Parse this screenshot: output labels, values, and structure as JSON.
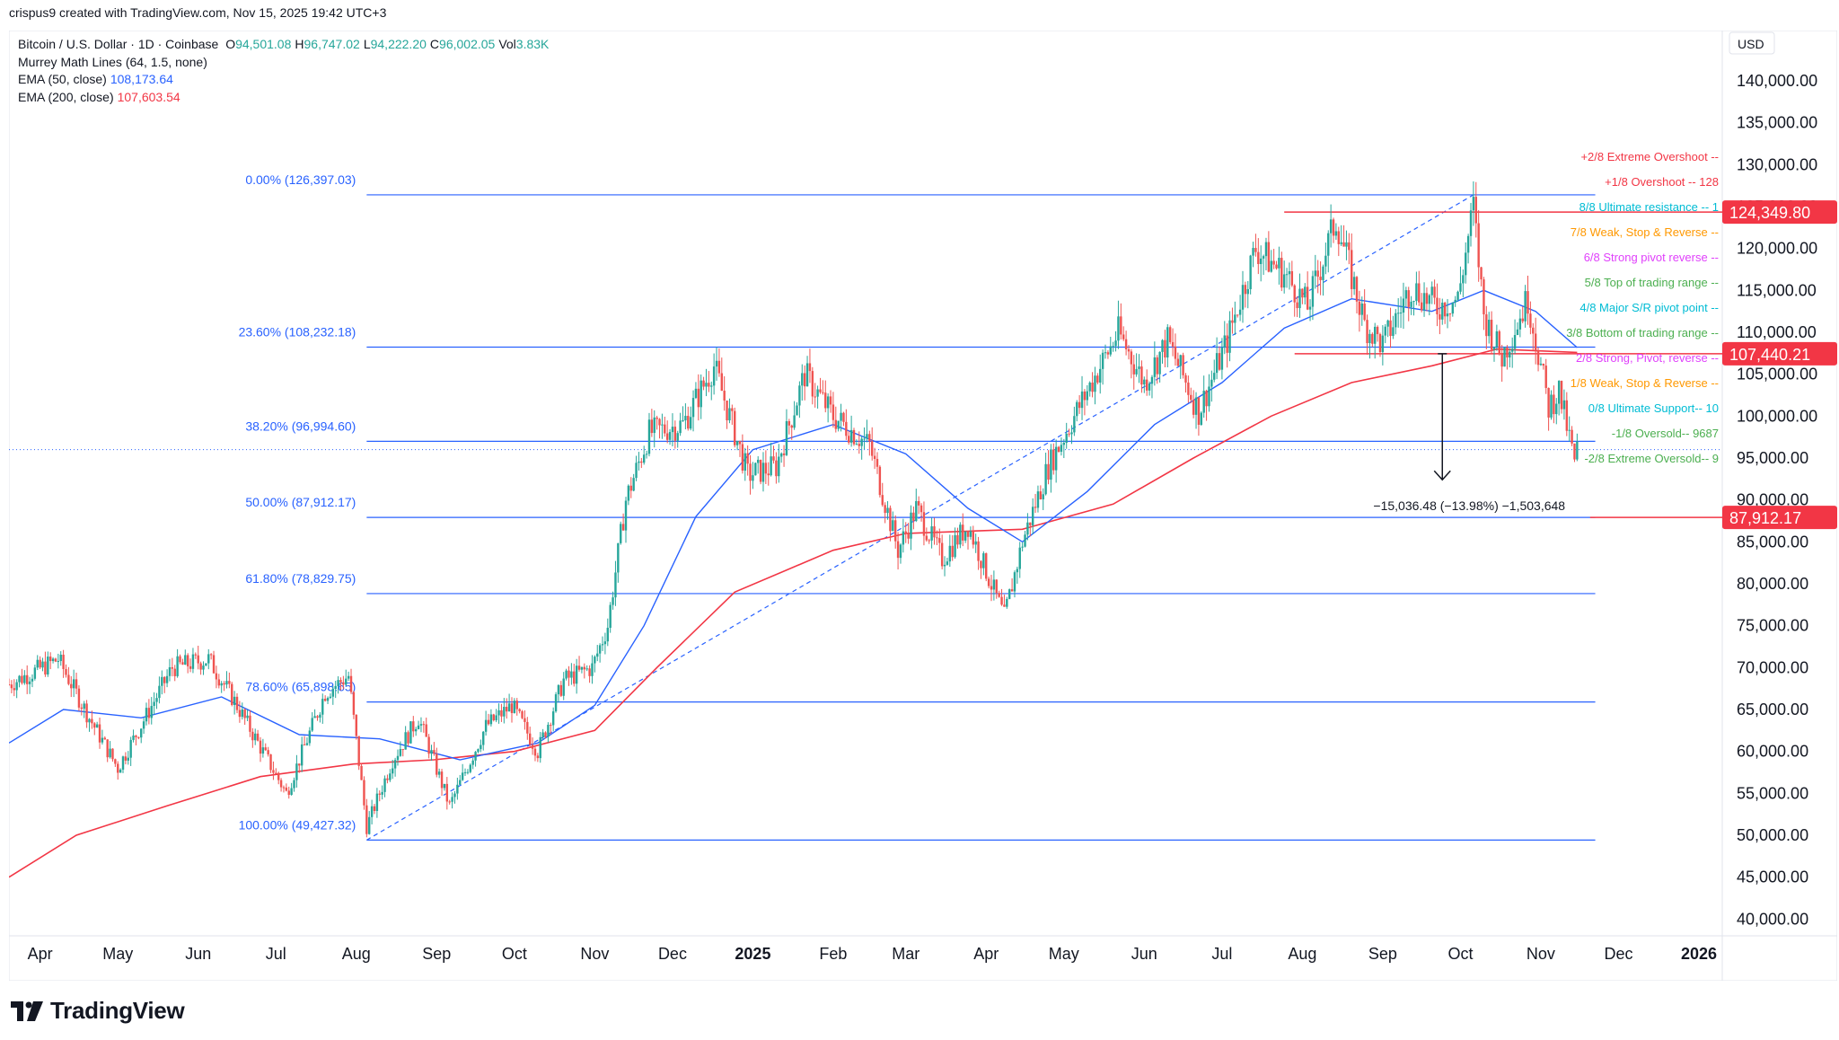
{
  "header": {
    "created_by": "crispus9 created with TradingView.com, Nov 15, 2025 19:42 UTC+3"
  },
  "legend": {
    "symbol": "Bitcoin / U.S. Dollar · 1D · Coinbase",
    "ohlc": [
      {
        "key": "O",
        "value": "94,501.08"
      },
      {
        "key": "H",
        "value": "96,747.02"
      },
      {
        "key": "L",
        "value": "94,222.20"
      },
      {
        "key": "C",
        "value": "96,002.05"
      },
      {
        "key": "Vol",
        "value": "3.83K"
      }
    ],
    "indicators": [
      {
        "label": "Murrey Math Lines (64, 1.5, none)",
        "value": "",
        "color": "#131722"
      },
      {
        "label": "EMA (50, close)",
        "value": "108,173.64",
        "color": "#2962ff"
      },
      {
        "label": "EMA (200, close)",
        "value": "107,603.54",
        "color": "#f23645"
      }
    ]
  },
  "brand": {
    "name": "TradingView"
  },
  "colors": {
    "up": "#26a69a",
    "down": "#ef5350",
    "fib": "#2962ff",
    "ema50": "#2962ff",
    "ema200": "#f23645",
    "last_price": "#787b86"
  },
  "chart_data": {
    "type": "candlestick",
    "currency": "USD",
    "ylim": [
      38000,
      146000
    ],
    "y_ticks": [
      "140,000.00",
      "135,000.00",
      "130,000.00",
      "125,000.00",
      "120,000.00",
      "115,000.00",
      "110,000.00",
      "105,000.00",
      "100,000.00",
      "95,000.00",
      "90,000.00",
      "85,000.00",
      "80,000.00",
      "75,000.00",
      "70,000.00",
      "65,000.00",
      "60,000.00",
      "55,000.00",
      "50,000.00",
      "45,000.00",
      "40,000.00"
    ],
    "y_tick_values": [
      140000,
      135000,
      130000,
      125000,
      120000,
      115000,
      110000,
      105000,
      100000,
      95000,
      90000,
      85000,
      80000,
      75000,
      70000,
      65000,
      60000,
      55000,
      50000,
      45000,
      40000
    ],
    "x_ticks": [
      {
        "label": "Apr",
        "date": "2024-04-01",
        "bold": false
      },
      {
        "label": "May",
        "date": "2024-05-01",
        "bold": false
      },
      {
        "label": "Jun",
        "date": "2024-06-01",
        "bold": false
      },
      {
        "label": "Jul",
        "date": "2024-07-01",
        "bold": false
      },
      {
        "label": "Aug",
        "date": "2024-08-01",
        "bold": false
      },
      {
        "label": "Sep",
        "date": "2024-09-01",
        "bold": false
      },
      {
        "label": "Oct",
        "date": "2024-10-01",
        "bold": false
      },
      {
        "label": "Nov",
        "date": "2024-11-01",
        "bold": false
      },
      {
        "label": "Dec",
        "date": "2024-12-01",
        "bold": false
      },
      {
        "label": "2025",
        "date": "2025-01-01",
        "bold": true
      },
      {
        "label": "Feb",
        "date": "2025-02-01",
        "bold": false
      },
      {
        "label": "Mar",
        "date": "2025-03-01",
        "bold": false
      },
      {
        "label": "Apr",
        "date": "2025-04-01",
        "bold": false
      },
      {
        "label": "May",
        "date": "2025-05-01",
        "bold": false
      },
      {
        "label": "Jun",
        "date": "2025-06-01",
        "bold": false
      },
      {
        "label": "Jul",
        "date": "2025-07-01",
        "bold": false
      },
      {
        "label": "Aug",
        "date": "2025-08-01",
        "bold": false
      },
      {
        "label": "Sep",
        "date": "2025-09-01",
        "bold": false
      },
      {
        "label": "Oct",
        "date": "2025-10-01",
        "bold": false
      },
      {
        "label": "Nov",
        "date": "2025-11-01",
        "bold": false
      },
      {
        "label": "Dec",
        "date": "2025-12-01",
        "bold": false
      },
      {
        "label": "2026",
        "date": "2026-01-01",
        "bold": true
      }
    ],
    "x_start_date": "2024-03-20",
    "x_end_date": "2026-01-10",
    "price_path": [
      [
        "2024-03-20",
        68000
      ],
      [
        "2024-04-08",
        71000
      ],
      [
        "2024-04-20",
        64000
      ],
      [
        "2024-05-01",
        58000
      ],
      [
        "2024-05-15",
        66000
      ],
      [
        "2024-05-22",
        70000
      ],
      [
        "2024-06-05",
        71000
      ],
      [
        "2024-06-15",
        66000
      ],
      [
        "2024-07-05",
        55000
      ],
      [
        "2024-07-20",
        67000
      ],
      [
        "2024-07-29",
        69000
      ],
      [
        "2024-08-05",
        51000
      ],
      [
        "2024-08-15",
        59000
      ],
      [
        "2024-08-25",
        64000
      ],
      [
        "2024-09-06",
        53500
      ],
      [
        "2024-09-20",
        63000
      ],
      [
        "2024-09-30",
        65500
      ],
      [
        "2024-10-10",
        60000
      ],
      [
        "2024-10-20",
        68500
      ],
      [
        "2024-10-31",
        70000
      ],
      [
        "2024-11-06",
        75000
      ],
      [
        "2024-11-13",
        90000
      ],
      [
        "2024-11-22",
        98000
      ],
      [
        "2024-12-05",
        99000
      ],
      [
        "2024-12-17",
        106000
      ],
      [
        "2024-12-30",
        93000
      ],
      [
        "2025-01-10",
        94000
      ],
      [
        "2025-01-21",
        105000
      ],
      [
        "2025-02-01",
        100000
      ],
      [
        "2025-02-15",
        96500
      ],
      [
        "2025-02-26",
        84000
      ],
      [
        "2025-03-05",
        89000
      ],
      [
        "2025-03-15",
        83000
      ],
      [
        "2025-03-25",
        87000
      ],
      [
        "2025-04-08",
        76000
      ],
      [
        "2025-04-15",
        85000
      ],
      [
        "2025-04-25",
        94000
      ],
      [
        "2025-05-10",
        103000
      ],
      [
        "2025-05-22",
        110000
      ],
      [
        "2025-06-01",
        104000
      ],
      [
        "2025-06-10",
        109000
      ],
      [
        "2025-06-22",
        100500
      ],
      [
        "2025-07-03",
        109000
      ],
      [
        "2025-07-14",
        120000
      ],
      [
        "2025-07-25",
        117000
      ],
      [
        "2025-08-03",
        113000
      ],
      [
        "2025-08-14",
        123500
      ],
      [
        "2025-08-25",
        111000
      ],
      [
        "2025-09-01",
        108500
      ],
      [
        "2025-09-12",
        115500
      ],
      [
        "2025-09-22",
        113000
      ],
      [
        "2025-09-30",
        114000
      ],
      [
        "2025-10-06",
        125000
      ],
      [
        "2025-10-10",
        112000
      ],
      [
        "2025-10-17",
        107000
      ],
      [
        "2025-10-27",
        114000
      ],
      [
        "2025-11-04",
        101000
      ],
      [
        "2025-11-08",
        103000
      ],
      [
        "2025-11-14",
        94500
      ],
      [
        "2025-11-15",
        96000
      ]
    ],
    "ema50_path": [
      [
        "2024-03-20",
        61000
      ],
      [
        "2024-04-10",
        65000
      ],
      [
        "2024-05-10",
        64000
      ],
      [
        "2024-06-10",
        66500
      ],
      [
        "2024-07-10",
        62000
      ],
      [
        "2024-08-10",
        61500
      ],
      [
        "2024-09-10",
        59000
      ],
      [
        "2024-10-10",
        61000
      ],
      [
        "2024-11-01",
        65500
      ],
      [
        "2024-11-20",
        75000
      ],
      [
        "2024-12-10",
        88000
      ],
      [
        "2025-01-01",
        96000
      ],
      [
        "2025-02-01",
        99000
      ],
      [
        "2025-03-01",
        95500
      ],
      [
        "2025-03-25",
        89000
      ],
      [
        "2025-04-15",
        85000
      ],
      [
        "2025-05-10",
        91000
      ],
      [
        "2025-06-05",
        99000
      ],
      [
        "2025-07-01",
        104000
      ],
      [
        "2025-07-25",
        110500
      ],
      [
        "2025-08-20",
        114000
      ],
      [
        "2025-09-20",
        112500
      ],
      [
        "2025-10-10",
        115000
      ],
      [
        "2025-10-30",
        112500
      ],
      [
        "2025-11-15",
        108173.64
      ]
    ],
    "ema200_path": [
      [
        "2024-03-20",
        45000
      ],
      [
        "2024-04-15",
        50000
      ],
      [
        "2024-05-20",
        53500
      ],
      [
        "2024-06-25",
        57000
      ],
      [
        "2024-07-31",
        58500
      ],
      [
        "2024-08-31",
        59000
      ],
      [
        "2024-10-01",
        60000
      ],
      [
        "2024-11-01",
        62500
      ],
      [
        "2024-11-25",
        70000
      ],
      [
        "2024-12-25",
        79000
      ],
      [
        "2025-02-01",
        84000
      ],
      [
        "2025-03-01",
        86000
      ],
      [
        "2025-04-15",
        86500
      ],
      [
        "2025-05-20",
        89500
      ],
      [
        "2025-06-20",
        95000
      ],
      [
        "2025-07-20",
        100000
      ],
      [
        "2025-08-20",
        104000
      ],
      [
        "2025-09-20",
        106000
      ],
      [
        "2025-10-15",
        108000
      ],
      [
        "2025-11-15",
        107603.54
      ]
    ],
    "fib_levels": [
      {
        "label": "0.00% (126,397.03)",
        "price": 126397.03
      },
      {
        "label": "23.60% (108,232.18)",
        "price": 108232.18
      },
      {
        "label": "38.20% (96,994.60)",
        "price": 96994.6
      },
      {
        "label": "50.00% (87,912.17)",
        "price": 87912.17
      },
      {
        "label": "61.80% (78,829.75)",
        "price": 78829.75
      },
      {
        "label": "78.60% (65,898.65)",
        "price": 65898.65
      },
      {
        "label": "100.00% (49,427.32)",
        "price": 49427.32
      }
    ],
    "fib_range": {
      "start_date": "2024-08-05",
      "end_date": "2025-11-22",
      "trend_from": [
        "2024-08-05",
        49427.32
      ],
      "trend_to": [
        "2025-10-06",
        126397.03
      ]
    },
    "murrey_lines": [
      {
        "label": "+2/8 Extreme Overshoot --",
        "color": "#f23645",
        "price": 131000
      },
      {
        "label": "+1/8 Overshoot --  128",
        "color": "#f23645",
        "price": 128000
      },
      {
        "label": "8/8 Ultimate resistance --  1",
        "color": "#00bcd4",
        "price": 125000
      },
      {
        "label": "7/8 Weak, Stop & Reverse --",
        "color": "#ff9800",
        "price": 122000
      },
      {
        "label": "6/8 Strong pivot reverse --",
        "color": "#e040fb",
        "price": 119000
      },
      {
        "label": "5/8 Top of trading range --",
        "color": "#4caf50",
        "price": 116000
      },
      {
        "label": "4/8 Major S/R pivot point --",
        "color": "#00bcd4",
        "price": 113000
      },
      {
        "label": "3/8 Bottom of trading range --",
        "color": "#4caf50",
        "price": 110000
      },
      {
        "label": "2/8 Strong, Pivot, reverse --",
        "color": "#e040fb",
        "price": 107000
      },
      {
        "label": "1/8 Weak, Stop & Reverse --",
        "color": "#ff9800",
        "price": 104000
      },
      {
        "label": "0/8 Ultimate Support--  10",
        "color": "#00bcd4",
        "price": 101000
      },
      {
        "label": "-1/8 Oversold--  9687",
        "color": "#4caf50",
        "price": 98000
      },
      {
        "label": "-2/8 Extreme Oversold--  9",
        "color": "#4caf50",
        "price": 95000
      }
    ],
    "horizontal_lines": [
      {
        "price": 124349.8,
        "label": "124,349.80",
        "color": "#f23645",
        "from": "2025-07-25"
      },
      {
        "price": 107440.21,
        "label": "107,440.21",
        "color": "#f23645",
        "from": "2025-07-29"
      },
      {
        "price": 87912.17,
        "label": "87,912.17",
        "color": "#f23645",
        "from": "2025-11-20"
      }
    ],
    "last_price": 96002.05,
    "measure": {
      "date": "2025-09-24",
      "from": 107440.21,
      "to": 92404,
      "text": "−15,036.48 (−13.98%) −1,503,648"
    }
  }
}
